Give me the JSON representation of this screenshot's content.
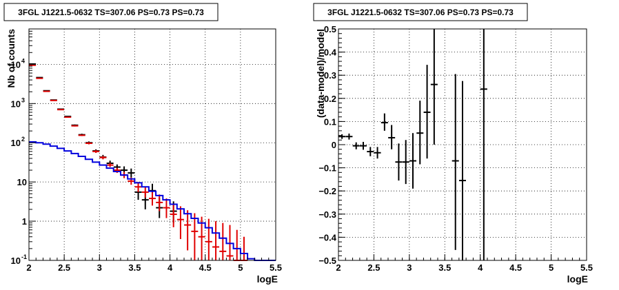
{
  "chart_data": [
    {
      "type": "scatter",
      "title": "3FGL J1221.5-0632 TS=307.06 PS=0.73 PS=0.73",
      "xlabel": "logE",
      "ylabel": "Nb of counts",
      "xlim": [
        2,
        5.5
      ],
      "ylim": [
        0.1,
        80000
      ],
      "yscale": "log",
      "grid": true,
      "x_ticks": [
        {
          "v": 2,
          "label": "2"
        },
        {
          "v": 2.5,
          "label": "2.5"
        },
        {
          "v": 3,
          "label": "3"
        },
        {
          "v": 3.5,
          "label": "3.5"
        },
        {
          "v": 4,
          "label": "4"
        },
        {
          "v": 4.5,
          "label": "4.5"
        },
        {
          "v": 5,
          "label": "5"
        },
        {
          "v": 5.5,
          "label": "5.5"
        }
      ],
      "y_ticks": [
        {
          "v": 0.1,
          "base": "10",
          "exp": "-1"
        },
        {
          "v": 1,
          "base": "1",
          "exp": ""
        },
        {
          "v": 10,
          "base": "10",
          "exp": ""
        },
        {
          "v": 100,
          "base": "10",
          "exp": "2"
        },
        {
          "v": 1000,
          "base": "10",
          "exp": "3"
        },
        {
          "v": 10000,
          "base": "10",
          "exp": "4"
        }
      ],
      "series": [
        {
          "color": "#000000",
          "kind": "errorbar",
          "points": [
            {
              "x": 2.05,
              "y": 10200,
              "lo": 10000,
              "hi": 10400
            },
            {
              "x": 2.15,
              "y": 4600,
              "lo": 4500,
              "hi": 4700
            },
            {
              "x": 2.25,
              "y": 2120,
              "lo": 2080,
              "hi": 2170
            },
            {
              "x": 2.35,
              "y": 1230,
              "lo": 1200,
              "hi": 1260
            },
            {
              "x": 2.45,
              "y": 720,
              "lo": 700,
              "hi": 745
            },
            {
              "x": 2.55,
              "y": 470,
              "lo": 455,
              "hi": 485
            },
            {
              "x": 2.65,
              "y": 280,
              "lo": 270,
              "hi": 292
            },
            {
              "x": 2.75,
              "y": 160,
              "lo": 150,
              "hi": 170
            },
            {
              "x": 2.85,
              "y": 100,
              "lo": 93,
              "hi": 108
            },
            {
              "x": 2.95,
              "y": 62,
              "lo": 56,
              "hi": 68
            },
            {
              "x": 3.05,
              "y": 43,
              "lo": 38,
              "hi": 49
            },
            {
              "x": 3.15,
              "y": 30,
              "lo": 26,
              "hi": 35
            },
            {
              "x": 3.25,
              "y": 24,
              "lo": 20,
              "hi": 28
            },
            {
              "x": 3.35,
              "y": 20,
              "lo": 16,
              "hi": 25
            },
            {
              "x": 3.45,
              "y": 17,
              "lo": 13,
              "hi": 22
            },
            {
              "x": 3.55,
              "y": 5.5,
              "lo": 3.5,
              "hi": 8
            },
            {
              "x": 3.65,
              "y": 3.5,
              "lo": 2,
              "hi": 5.5
            },
            {
              "x": 3.75,
              "y": 6,
              "lo": 4,
              "hi": 9
            },
            {
              "x": 3.85,
              "y": 2.2,
              "lo": 1.2,
              "hi": 4
            },
            {
              "x": 4.05,
              "y": 1.8,
              "lo": 0.9,
              "hi": 3.2
            }
          ]
        },
        {
          "color": "#e00000",
          "kind": "errorbar",
          "points": [
            {
              "x": 2.05,
              "y": 9500,
              "lo": 9300,
              "hi": 9700
            },
            {
              "x": 2.15,
              "y": 4400,
              "lo": 4300,
              "hi": 4500
            },
            {
              "x": 2.25,
              "y": 2050,
              "lo": 2000,
              "hi": 2100
            },
            {
              "x": 2.35,
              "y": 1200,
              "lo": 1170,
              "hi": 1230
            },
            {
              "x": 2.45,
              "y": 700,
              "lo": 680,
              "hi": 720
            },
            {
              "x": 2.55,
              "y": 450,
              "lo": 435,
              "hi": 465
            },
            {
              "x": 2.65,
              "y": 270,
              "lo": 260,
              "hi": 280
            },
            {
              "x": 2.75,
              "y": 155,
              "lo": 148,
              "hi": 162
            },
            {
              "x": 2.85,
              "y": 97,
              "lo": 91,
              "hi": 103
            },
            {
              "x": 2.95,
              "y": 60,
              "lo": 55,
              "hi": 65
            },
            {
              "x": 3.05,
              "y": 42,
              "lo": 38,
              "hi": 46
            },
            {
              "x": 3.15,
              "y": 27,
              "lo": 24,
              "hi": 30.5
            },
            {
              "x": 3.25,
              "y": 20,
              "lo": 17,
              "hi": 23
            },
            {
              "x": 3.35,
              "y": 15,
              "lo": 12.5,
              "hi": 18
            },
            {
              "x": 3.45,
              "y": 10.5,
              "lo": 8.5,
              "hi": 13
            },
            {
              "x": 3.55,
              "y": 7.5,
              "lo": 5.5,
              "hi": 10
            },
            {
              "x": 3.65,
              "y": 5.5,
              "lo": 4,
              "hi": 7.5
            },
            {
              "x": 3.75,
              "y": 3.8,
              "lo": 2.5,
              "hi": 5.5
            },
            {
              "x": 3.85,
              "y": 3.0,
              "lo": 1.8,
              "hi": 4.8
            },
            {
              "x": 3.95,
              "y": 2.2,
              "lo": 1.2,
              "hi": 3.8
            },
            {
              "x": 4.05,
              "y": 1.5,
              "lo": 0.7,
              "hi": 2.8
            },
            {
              "x": 4.15,
              "y": 1.1,
              "lo": 0.35,
              "hi": 2.4
            },
            {
              "x": 4.25,
              "y": 0.8,
              "lo": 0.18,
              "hi": 1.9
            },
            {
              "x": 4.35,
              "y": 0.55,
              "lo": 0.1,
              "hi": 1.6
            },
            {
              "x": 4.45,
              "y": 0.4,
              "lo": 0.1,
              "hi": 1.3
            },
            {
              "x": 4.55,
              "y": 0.3,
              "lo": 0.1,
              "hi": 1.15
            },
            {
              "x": 4.65,
              "y": 0.22,
              "lo": 0.1,
              "hi": 1.0
            },
            {
              "x": 4.75,
              "y": 0.17,
              "lo": 0.1,
              "hi": 0.9
            },
            {
              "x": 4.85,
              "y": 0.13,
              "lo": 0.1,
              "hi": 0.8
            },
            {
              "x": 4.95,
              "y": 0.1,
              "lo": 0.1,
              "hi": 0.6
            },
            {
              "x": 5.05,
              "y": 0.1,
              "lo": 0.1,
              "hi": 0.4
            }
          ]
        },
        {
          "color": "#0000dd",
          "kind": "step",
          "points": [
            {
              "x": 2.0,
              "y": 105
            },
            {
              "x": 2.1,
              "y": 100
            },
            {
              "x": 2.2,
              "y": 92
            },
            {
              "x": 2.3,
              "y": 82
            },
            {
              "x": 2.4,
              "y": 72
            },
            {
              "x": 2.5,
              "y": 62
            },
            {
              "x": 2.6,
              "y": 53
            },
            {
              "x": 2.7,
              "y": 45
            },
            {
              "x": 2.8,
              "y": 38
            },
            {
              "x": 2.9,
              "y": 32
            },
            {
              "x": 3.0,
              "y": 27
            },
            {
              "x": 3.1,
              "y": 22.5
            },
            {
              "x": 3.2,
              "y": 18.5
            },
            {
              "x": 3.3,
              "y": 15
            },
            {
              "x": 3.4,
              "y": 12
            },
            {
              "x": 3.5,
              "y": 9.5
            },
            {
              "x": 3.6,
              "y": 7.5
            },
            {
              "x": 3.7,
              "y": 5.8
            },
            {
              "x": 3.8,
              "y": 4.5
            },
            {
              "x": 3.9,
              "y": 3.5
            },
            {
              "x": 4.0,
              "y": 2.7
            },
            {
              "x": 4.1,
              "y": 2.05
            },
            {
              "x": 4.2,
              "y": 1.55
            },
            {
              "x": 4.3,
              "y": 1.18
            },
            {
              "x": 4.4,
              "y": 0.9
            },
            {
              "x": 4.5,
              "y": 0.68
            },
            {
              "x": 4.6,
              "y": 0.5
            },
            {
              "x": 4.7,
              "y": 0.37
            },
            {
              "x": 4.8,
              "y": 0.27
            },
            {
              "x": 4.9,
              "y": 0.2
            },
            {
              "x": 5.0,
              "y": 0.15
            },
            {
              "x": 5.1,
              "y": 0.11
            },
            {
              "x": 5.2,
              "y": 0.1
            },
            {
              "x": 5.3,
              "y": 0.1
            },
            {
              "x": 5.4,
              "y": 0.1
            }
          ]
        }
      ]
    },
    {
      "type": "scatter",
      "title": "3FGL J1221.5-0632 TS=307.06 PS=0.73 PS=0.73",
      "xlabel": "logE",
      "ylabel": "(data-model)/model",
      "xlim": [
        2,
        5.5
      ],
      "ylim": [
        -0.5,
        0.5
      ],
      "yscale": "linear",
      "grid": true,
      "x_ticks": [
        {
          "v": 2,
          "label": "2"
        },
        {
          "v": 2.5,
          "label": "2.5"
        },
        {
          "v": 3,
          "label": "3"
        },
        {
          "v": 3.5,
          "label": "3.5"
        },
        {
          "v": 4,
          "label": "4"
        },
        {
          "v": 4.5,
          "label": "4.5"
        },
        {
          "v": 5,
          "label": "5"
        },
        {
          "v": 5.5,
          "label": "5.5"
        }
      ],
      "y_ticks": [
        {
          "v": -0.5,
          "label": "−0.5"
        },
        {
          "v": -0.4,
          "label": "−0.4"
        },
        {
          "v": -0.3,
          "label": "−0.3"
        },
        {
          "v": -0.2,
          "label": "−0.2"
        },
        {
          "v": -0.1,
          "label": "−0.1"
        },
        {
          "v": 0,
          "label": "0"
        },
        {
          "v": 0.1,
          "label": "0.1"
        },
        {
          "v": 0.2,
          "label": "0.2"
        },
        {
          "v": 0.3,
          "label": "0.3"
        },
        {
          "v": 0.4,
          "label": "0.4"
        },
        {
          "v": 0.5,
          "label": "0.5"
        }
      ],
      "series": [
        {
          "color": "#000000",
          "kind": "errorbar",
          "points": [
            {
              "x": 2.05,
              "y": 0.035,
              "lo": 0.025,
              "hi": 0.045
            },
            {
              "x": 2.15,
              "y": 0.035,
              "lo": 0.022,
              "hi": 0.048
            },
            {
              "x": 2.25,
              "y": -0.005,
              "lo": -0.02,
              "hi": 0.01
            },
            {
              "x": 2.35,
              "y": -0.005,
              "lo": -0.022,
              "hi": 0.012
            },
            {
              "x": 2.45,
              "y": -0.03,
              "lo": -0.05,
              "hi": -0.01
            },
            {
              "x": 2.55,
              "y": -0.035,
              "lo": -0.06,
              "hi": -0.01
            },
            {
              "x": 2.65,
              "y": 0.095,
              "lo": 0.06,
              "hi": 0.135
            },
            {
              "x": 2.75,
              "y": 0.03,
              "lo": -0.02,
              "hi": 0.085
            },
            {
              "x": 2.85,
              "y": -0.075,
              "lo": -0.155,
              "hi": 0.005
            },
            {
              "x": 2.95,
              "y": -0.075,
              "lo": -0.17,
              "hi": 0.02
            },
            {
              "x": 3.05,
              "y": -0.07,
              "lo": -0.19,
              "hi": 0.05
            },
            {
              "x": 3.15,
              "y": 0.05,
              "lo": -0.085,
              "hi": 0.19
            },
            {
              "x": 3.25,
              "y": 0.14,
              "lo": -0.06,
              "hi": 0.345
            },
            {
              "x": 3.35,
              "y": 0.26,
              "lo": 0.0,
              "hi": 0.5
            },
            {
              "x": 3.65,
              "y": -0.07,
              "lo": -0.455,
              "hi": 0.305
            },
            {
              "x": 3.75,
              "y": -0.155,
              "lo": -0.5,
              "hi": 0.275
            },
            {
              "x": 4.05,
              "y": 0.24,
              "lo": -0.5,
              "hi": 0.5
            }
          ]
        }
      ]
    }
  ]
}
